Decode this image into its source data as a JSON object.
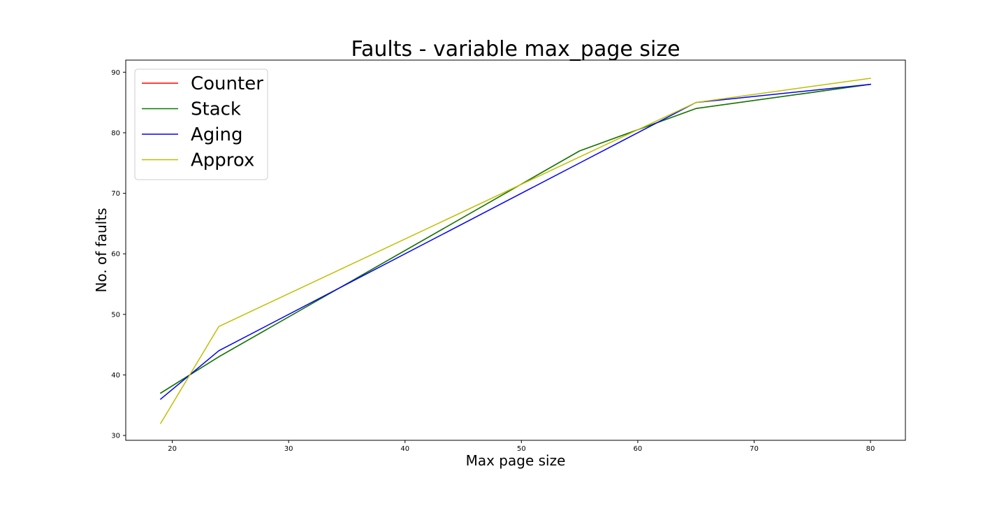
{
  "chart_data": {
    "type": "line",
    "title": "Faults - variable max_page size",
    "xlabel": "Max page size",
    "ylabel": "No. of faults",
    "xlim": [
      16.0,
      83.0
    ],
    "ylim": [
      29.2,
      92.0
    ],
    "xticks": [
      20,
      30,
      40,
      50,
      60,
      70,
      80
    ],
    "yticks": [
      30,
      40,
      50,
      60,
      70,
      80,
      90
    ],
    "grid": false,
    "legend_position": "upper-left",
    "x": [
      19,
      24,
      55,
      65,
      80
    ],
    "series": [
      {
        "name": "Counter",
        "color": "#ff0000",
        "values": [
          37,
          43,
          77,
          84,
          88
        ]
      },
      {
        "name": "Stack",
        "color": "#008000",
        "values": [
          37,
          43,
          77,
          84,
          88
        ]
      },
      {
        "name": "Aging",
        "color": "#0000ff",
        "values": [
          36,
          44,
          75,
          85,
          88
        ]
      },
      {
        "name": "Approx",
        "color": "#bfbf00",
        "values": [
          32,
          48,
          76,
          85,
          89
        ]
      }
    ]
  }
}
